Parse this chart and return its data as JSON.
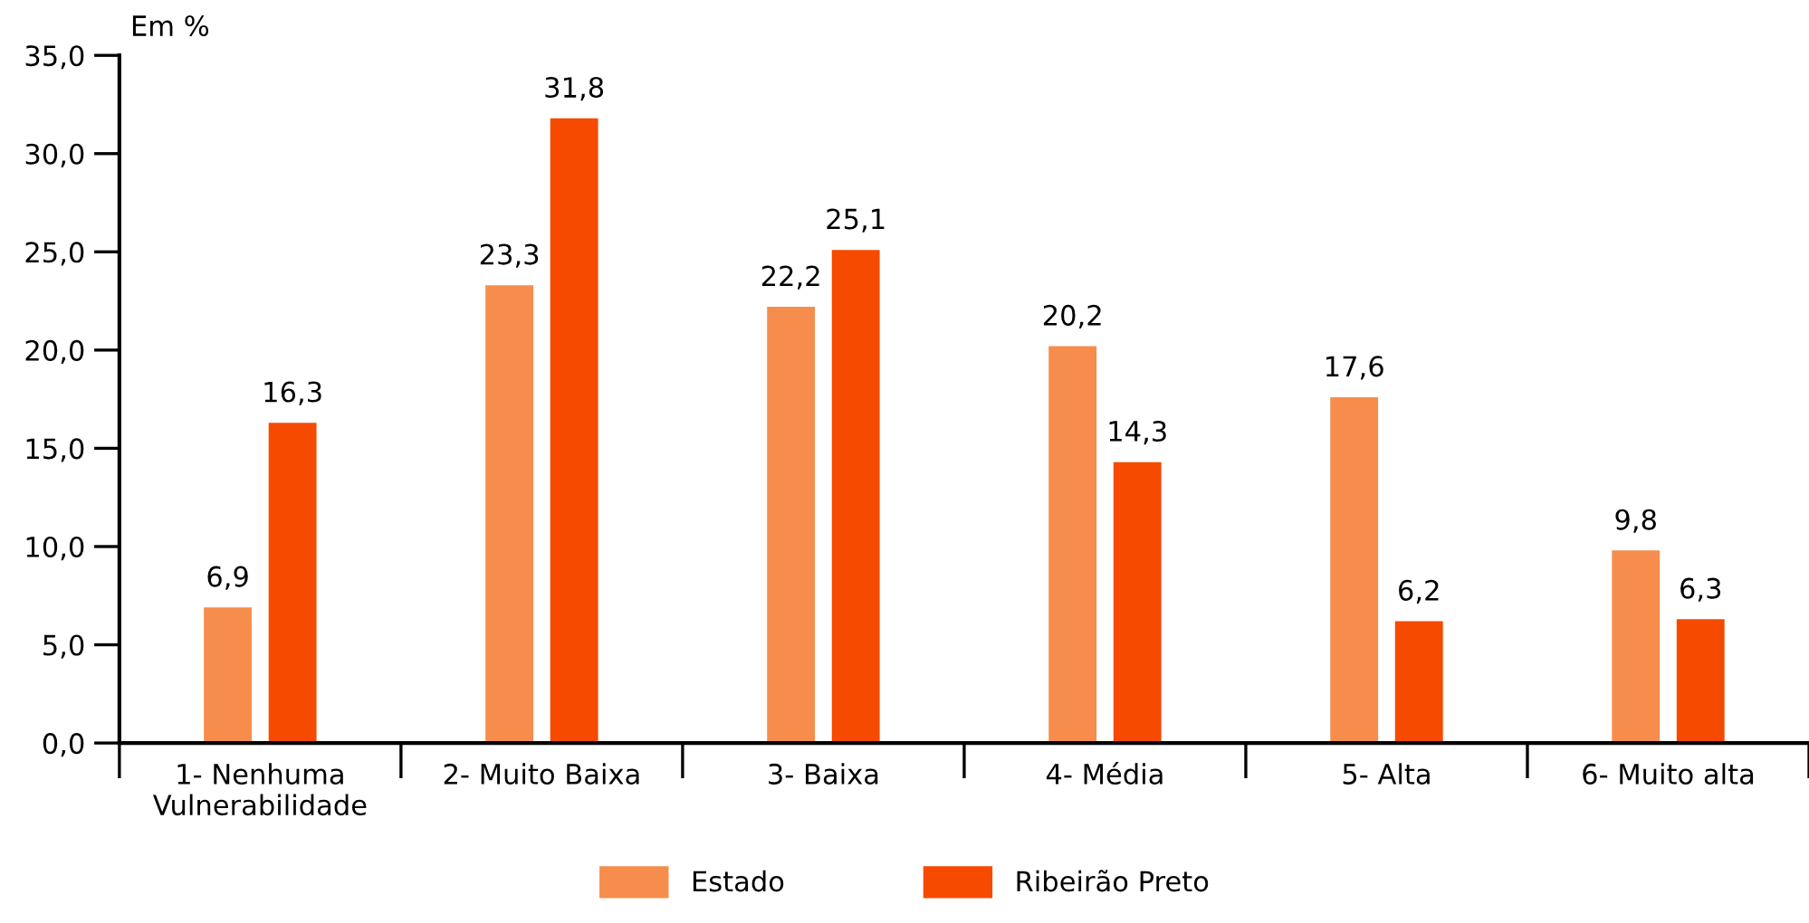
{
  "chart_data": {
    "type": "bar",
    "ylabel": "Em %",
    "categories": [
      "1- Nenhuma\nVulnerabilidade",
      "2- Muito Baixa",
      "3- Baixa",
      "4- Média",
      "5- Alta",
      "6- Muito alta"
    ],
    "series": [
      {
        "name": "Estado",
        "color": "#f68d4c",
        "values": [
          6.9,
          23.3,
          22.2,
          20.2,
          17.6,
          9.8
        ],
        "value_labels": [
          "6,9",
          "23,3",
          "22,2",
          "20,2",
          "17,6",
          "9,8"
        ]
      },
      {
        "name": "Ribeirão Preto",
        "color": "#f54a00",
        "values": [
          16.3,
          31.8,
          25.1,
          14.3,
          6.2,
          6.3
        ],
        "value_labels": [
          "16,3",
          "31,8",
          "25,1",
          "14,3",
          "6,2",
          "6,3"
        ]
      }
    ],
    "ylim": [
      0,
      35
    ],
    "yticks": [
      {
        "value": 0,
        "label": "0,0"
      },
      {
        "value": 5,
        "label": "5,0"
      },
      {
        "value": 10,
        "label": "10,0"
      },
      {
        "value": 15,
        "label": "15,0"
      },
      {
        "value": 20,
        "label": "20,0"
      },
      {
        "value": 25,
        "label": "25,0"
      },
      {
        "value": 30,
        "label": "30,0"
      },
      {
        "value": 35,
        "label": "35,0"
      }
    ],
    "grid": false,
    "legend": "bottom"
  }
}
